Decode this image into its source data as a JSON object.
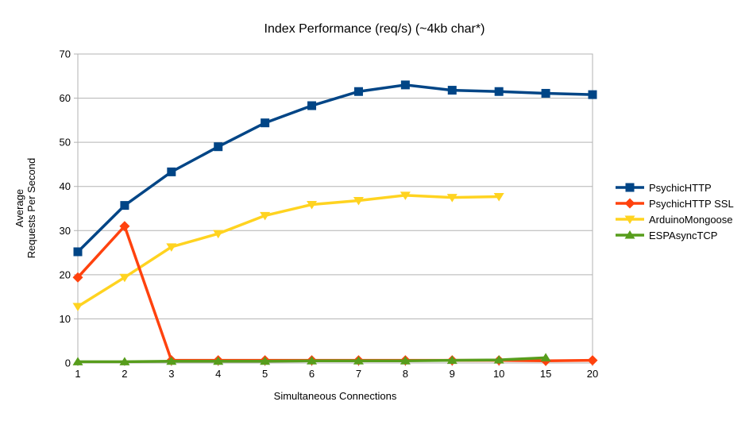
{
  "chart_data": {
    "type": "line",
    "title": "Index Performance (req/s) (~4kb char*)",
    "xlabel": "Simultaneous Connections",
    "ylabel_lines": [
      "Average",
      "Requests Per Second"
    ],
    "categories": [
      "1",
      "2",
      "3",
      "4",
      "5",
      "6",
      "7",
      "8",
      "9",
      "10",
      "15",
      "20"
    ],
    "ylim": [
      0,
      70
    ],
    "yticks": [
      0,
      10,
      20,
      30,
      40,
      50,
      60,
      70
    ],
    "grid": true,
    "legend_position": "right",
    "series": [
      {
        "name": "PsychicHTTP",
        "color": "#004586",
        "marker": "square",
        "values": [
          25.2,
          35.7,
          43.3,
          49.0,
          54.4,
          58.3,
          61.5,
          63.0,
          61.8,
          61.5,
          61.1,
          60.8
        ]
      },
      {
        "name": "PsychicHTTP SSL",
        "color": "#ff420e",
        "marker": "diamond",
        "values": [
          19.4,
          31.0,
          0.6,
          0.6,
          0.6,
          0.6,
          0.6,
          0.6,
          0.6,
          0.6,
          0.5,
          0.6
        ]
      },
      {
        "name": "ArduinoMongoose",
        "color": "#ffd320",
        "marker": "triangle-down",
        "values": [
          12.8,
          19.4,
          26.3,
          29.3,
          33.4,
          35.9,
          36.8,
          38.0,
          37.5,
          37.7,
          null,
          null
        ]
      },
      {
        "name": "ESPAsyncTCP",
        "color": "#579d1c",
        "marker": "triangle-up",
        "values": [
          0.3,
          0.3,
          0.4,
          0.4,
          0.4,
          0.5,
          0.5,
          0.5,
          0.6,
          0.7,
          1.2,
          null
        ]
      }
    ],
    "colors": {
      "grid": "#b3b3b3",
      "text": "#000000",
      "background": "#ffffff"
    }
  }
}
